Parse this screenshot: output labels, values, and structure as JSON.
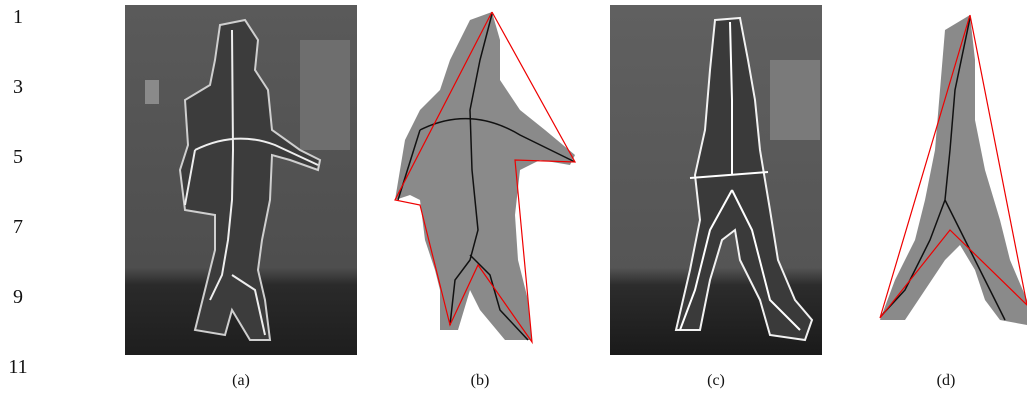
{
  "line_numbers": [
    "1",
    "3",
    "5",
    "7",
    "9",
    "11"
  ],
  "captions": [
    "(a)",
    "(b)",
    "(c)",
    "(d)"
  ]
}
